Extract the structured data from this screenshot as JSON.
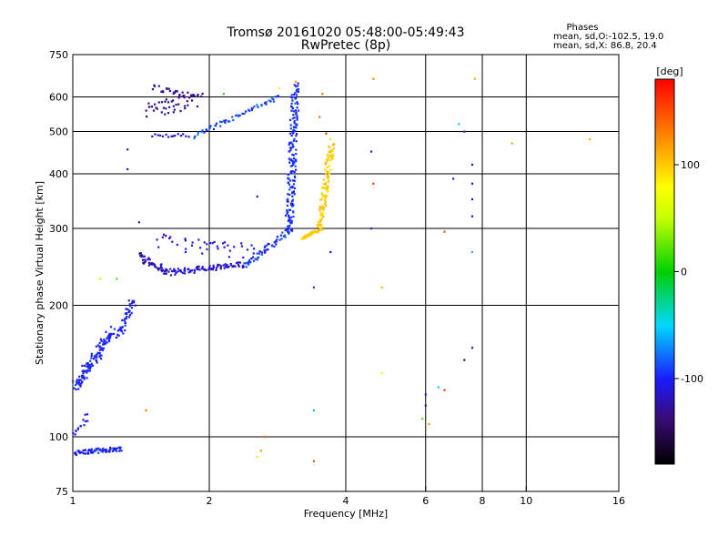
{
  "chart_data": {
    "type": "scatter",
    "title": "Tromsø 20161020 05:48:00-05:49:43",
    "subtitle": "RwPretec (8p)",
    "xlabel": "Frequency [MHz]",
    "ylabel": "Stationary phase Virtual Height [km]",
    "x_scale": "log",
    "y_scale": "log",
    "xlim": [
      1,
      16
    ],
    "ylim": [
      75,
      750
    ],
    "x_ticks": [
      1,
      2,
      4,
      6,
      8,
      10,
      16
    ],
    "y_ticks": [
      75,
      100,
      200,
      300,
      400,
      500,
      600,
      750
    ],
    "grid": true,
    "colorbar": {
      "label": "[deg]",
      "range": [
        -180,
        180
      ],
      "ticks": [
        100,
        0,
        -100
      ]
    },
    "phase_stats": {
      "heading": "Phases",
      "line_o": "mean, sd,O:-102.5, 19.0",
      "line_x": "mean, sd,X:  86.8, 20.4"
    },
    "traces": [
      {
        "from": [
          1.01,
          130
        ],
        "to": [
          1.22,
          175
        ],
        "n": 120,
        "jit": 0.04,
        "phase": [
          -110,
          -90
        ]
      },
      {
        "from": [
          1.26,
          170
        ],
        "to": [
          1.36,
          205
        ],
        "n": 45,
        "jit": 0.03,
        "phase": [
          -105,
          -95
        ]
      },
      {
        "from": [
          1.01,
          92
        ],
        "to": [
          1.28,
          94
        ],
        "n": 70,
        "jit": 0.015,
        "phase": [
          -110,
          -90
        ]
      },
      {
        "from": [
          1.0,
          100
        ],
        "to": [
          1.08,
          112
        ],
        "n": 15,
        "jit": 0.02,
        "phase": [
          -105,
          -95
        ]
      },
      {
        "from": [
          1.4,
          260
        ],
        "to": [
          1.62,
          238
        ],
        "n": 45,
        "jit": 0.025,
        "phase": [
          -130,
          -110
        ]
      },
      {
        "from": [
          1.62,
          238
        ],
        "to": [
          2.4,
          248
        ],
        "n": 90,
        "jit": 0.02,
        "phase": [
          -125,
          -100
        ]
      },
      {
        "from": [
          2.4,
          248
        ],
        "to": [
          3.05,
          300
        ],
        "n": 60,
        "jit": 0.02,
        "phase": [
          -110,
          -80
        ]
      },
      {
        "from": [
          1.55,
          280
        ],
        "to": [
          2.5,
          265
        ],
        "n": 40,
        "jit": 0.05,
        "phase": [
          -120,
          -95
        ]
      },
      {
        "from": [
          3.0,
          300
        ],
        "to": [
          3.1,
          640
        ],
        "n": 180,
        "jit": 0.04,
        "phase": [
          -105,
          -85
        ]
      },
      {
        "from": [
          3.2,
          285
        ],
        "to": [
          3.55,
          300
        ],
        "n": 35,
        "jit": 0.01,
        "phase": [
          90,
          110
        ]
      },
      {
        "from": [
          3.5,
          300
        ],
        "to": [
          3.72,
          470
        ],
        "n": 110,
        "jit": 0.03,
        "phase": [
          85,
          110
        ]
      },
      {
        "from": [
          1.85,
          488
        ],
        "to": [
          2.85,
          600
        ],
        "n": 55,
        "jit": 0.015,
        "phase": [
          -105,
          -70
        ]
      },
      {
        "from": [
          1.45,
          560
        ],
        "to": [
          1.9,
          590
        ],
        "n": 45,
        "jit": 0.05,
        "phase": [
          -140,
          -120
        ]
      },
      {
        "from": [
          1.5,
          630
        ],
        "to": [
          1.85,
          600
        ],
        "n": 25,
        "jit": 0.02,
        "phase": [
          -135,
          -125
        ]
      },
      {
        "from": [
          1.5,
          490
        ],
        "to": [
          1.8,
          490
        ],
        "n": 15,
        "jit": 0.01,
        "phase": [
          -120,
          -105
        ]
      }
    ],
    "points": [
      [
        4.6,
        660,
        125
      ],
      [
        4.55,
        450,
        -115
      ],
      [
        4.55,
        300,
        -100
      ],
      [
        4.6,
        380,
        160
      ],
      [
        4.8,
        220,
        110
      ],
      [
        4.8,
        140,
        75
      ],
      [
        3.4,
        220,
        -95
      ],
      [
        3.4,
        115,
        -60
      ],
      [
        3.4,
        88,
        150
      ],
      [
        3.7,
        265,
        -110
      ],
      [
        7.7,
        660,
        110
      ],
      [
        7.1,
        520,
        -50
      ],
      [
        7.3,
        500,
        -105
      ],
      [
        7.6,
        420,
        -110
      ],
      [
        7.6,
        380,
        -110
      ],
      [
        7.6,
        350,
        -115
      ],
      [
        7.6,
        320,
        -110
      ],
      [
        7.6,
        265,
        -55
      ],
      [
        7.6,
        160,
        -110
      ],
      [
        7.3,
        150,
        -140
      ],
      [
        6.9,
        390,
        -110
      ],
      [
        6.6,
        295,
        150
      ],
      [
        9.3,
        470,
        110
      ],
      [
        13.8,
        480,
        110
      ],
      [
        6.0,
        125,
        -100
      ],
      [
        6.0,
        118,
        -120
      ],
      [
        5.9,
        110,
        20
      ],
      [
        6.1,
        107,
        120
      ],
      [
        6.4,
        130,
        -55
      ],
      [
        6.6,
        128,
        160
      ],
      [
        2.6,
        93,
        120
      ],
      [
        2.55,
        90,
        90
      ],
      [
        2.65,
        100,
        140
      ],
      [
        1.15,
        230,
        50
      ],
      [
        1.25,
        230,
        20
      ],
      [
        1.45,
        115,
        130
      ],
      [
        2.15,
        610,
        10
      ],
      [
        2.85,
        628,
        70
      ],
      [
        3.1,
        650,
        120
      ],
      [
        3.5,
        540,
        140
      ],
      [
        3.62,
        495,
        160
      ],
      [
        1.32,
        410,
        -110
      ],
      [
        1.32,
        455,
        -110
      ],
      [
        1.4,
        310,
        -120
      ],
      [
        2.55,
        355,
        -110
      ],
      [
        3.55,
        610,
        140
      ]
    ]
  }
}
